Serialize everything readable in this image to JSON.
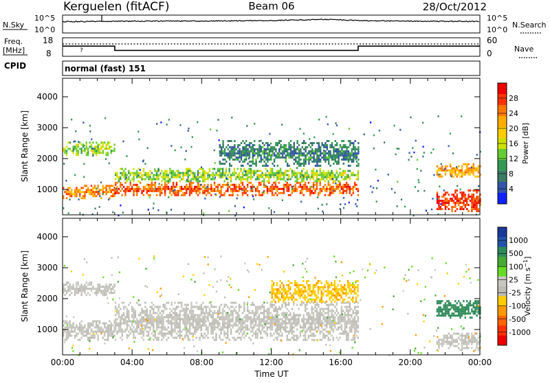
{
  "header": {
    "station": "Kerguelen (fitACF)",
    "beam": "Beam 06",
    "date": "28/Oct/2012"
  },
  "strip_labels": {
    "nsky": "N.Sky",
    "nsearch": "N.Search",
    "freq_line1": "Freq.",
    "freq_line2": "[MHz]",
    "nave": "Nave",
    "cpid": "CPID",
    "cpid_value": "normal (fast) 151",
    "noise_ticks_left": [
      "10^5",
      "10^0"
    ],
    "noise_ticks_right": [
      "10^5",
      "10^0"
    ],
    "freq_ticks_left": [
      "18",
      "8"
    ],
    "freq_ticks_right": [
      "60",
      "0"
    ]
  },
  "x_axis": {
    "label": "Time UT",
    "ticks": [
      "00:00",
      "04:00",
      "08:00",
      "12:00",
      "16:00",
      "20:00",
      "00:00"
    ]
  },
  "power_colorbar": {
    "label": "Power [dB]",
    "ticks": [
      "28",
      "24",
      "20",
      "16",
      "12",
      "8",
      "4"
    ],
    "colors": [
      "#ee0000",
      "#ff3300",
      "#ff7700",
      "#ffaa00",
      "#ffcc00",
      "#cfe000",
      "#66cc33",
      "#339955",
      "#3a7a66",
      "#3355aa",
      "#1122ff"
    ]
  },
  "velocity_colorbar": {
    "label": "Velocity [m s^-1]",
    "ticks": [
      "1000",
      "500",
      "100",
      "25",
      "-25",
      "-100",
      "-500",
      "-1000"
    ],
    "colors": [
      "#1a3a99",
      "#2255aa",
      "#2f8a5a",
      "#44aa33",
      "#66dd22",
      "#c8c8c0",
      "#bdbdb5",
      "#ffcc00",
      "#ff9900",
      "#ff6600",
      "#ff3300",
      "#ee0000"
    ]
  },
  "chart_data": [
    {
      "type": "line",
      "title": "N.Sky / N.Search",
      "series": [
        {
          "name": "N.Sky",
          "x_hours": [
            0,
            2,
            4,
            8,
            12,
            14,
            15,
            16,
            17,
            20,
            24
          ],
          "values": [
            1500,
            1800,
            2000,
            2200,
            3000,
            5000,
            6500,
            5000,
            3000,
            2000,
            1800
          ]
        }
      ],
      "ylim": [
        1,
        100000
      ],
      "log_y": true
    },
    {
      "type": "line",
      "title": "Freq. [MHz] / Nave",
      "series": [
        {
          "name": "Freq.",
          "x_hours": [
            0,
            3.0,
            3.0,
            17.0,
            17.0,
            24
          ],
          "values": [
            13.5,
            13.5,
            11.2,
            11.2,
            13.5,
            13.5
          ]
        },
        {
          "name": "Nave",
          "x_hours": [
            0,
            24
          ],
          "values": [
            40,
            40
          ]
        }
      ],
      "ylim_left": [
        8,
        18
      ],
      "ylim_right": [
        0,
        60
      ]
    },
    {
      "type": "heatmap",
      "title": "Power [dB]",
      "xlabel": "Time UT",
      "ylabel": "Slant Range [km]",
      "xlim_hours": [
        0,
        24
      ],
      "ylim": [
        180,
        4600
      ],
      "y_ticks": [
        1000,
        2000,
        3000,
        4000
      ],
      "colorbar_range": [
        0,
        32
      ],
      "regions": [
        {
          "t0": 0.0,
          "t1": 3.0,
          "r0": 700,
          "r1": 1150,
          "power": 24
        },
        {
          "t0": 0.0,
          "t1": 3.0,
          "r0": 2150,
          "r1": 2550,
          "power": 14
        },
        {
          "t0": 3.0,
          "t1": 17.0,
          "r0": 850,
          "r1": 1250,
          "power": 26
        },
        {
          "t0": 3.0,
          "t1": 17.0,
          "r0": 1300,
          "r1": 1700,
          "power": 14
        },
        {
          "t0": 9.0,
          "t1": 17.0,
          "r0": 1800,
          "r1": 2600,
          "power": 8
        },
        {
          "t0": 21.5,
          "t1": 24.0,
          "r0": 300,
          "r1": 1000,
          "power": 28
        },
        {
          "t0": 21.5,
          "t1": 24.0,
          "r0": 1450,
          "r1": 1850,
          "power": 22
        }
      ]
    },
    {
      "type": "heatmap",
      "title": "Velocity [m s^-1]",
      "xlabel": "Time UT",
      "ylabel": "Slant Range [km]",
      "xlim_hours": [
        0,
        24
      ],
      "ylim": [
        180,
        4600
      ],
      "y_ticks": [
        1000,
        2000,
        3000,
        4000
      ],
      "colorbar_range": [
        -1000,
        1000
      ],
      "regions": [
        {
          "t0": 0.0,
          "t1": 3.0,
          "r0": 700,
          "r1": 1300,
          "velocity": 0
        },
        {
          "t0": 0.0,
          "t1": 3.0,
          "r0": 2100,
          "r1": 2550,
          "velocity": 0
        },
        {
          "t0": 3.0,
          "t1": 17.0,
          "r0": 700,
          "r1": 1900,
          "velocity": 0
        },
        {
          "t0": 12.0,
          "t1": 17.0,
          "r0": 1900,
          "r1": 2600,
          "velocity": -300
        },
        {
          "t0": 21.5,
          "t1": 24.0,
          "r0": 1400,
          "r1": 1950,
          "velocity": 600
        },
        {
          "t0": 21.5,
          "t1": 24.0,
          "r0": 350,
          "r1": 900,
          "velocity": 0
        }
      ]
    }
  ]
}
